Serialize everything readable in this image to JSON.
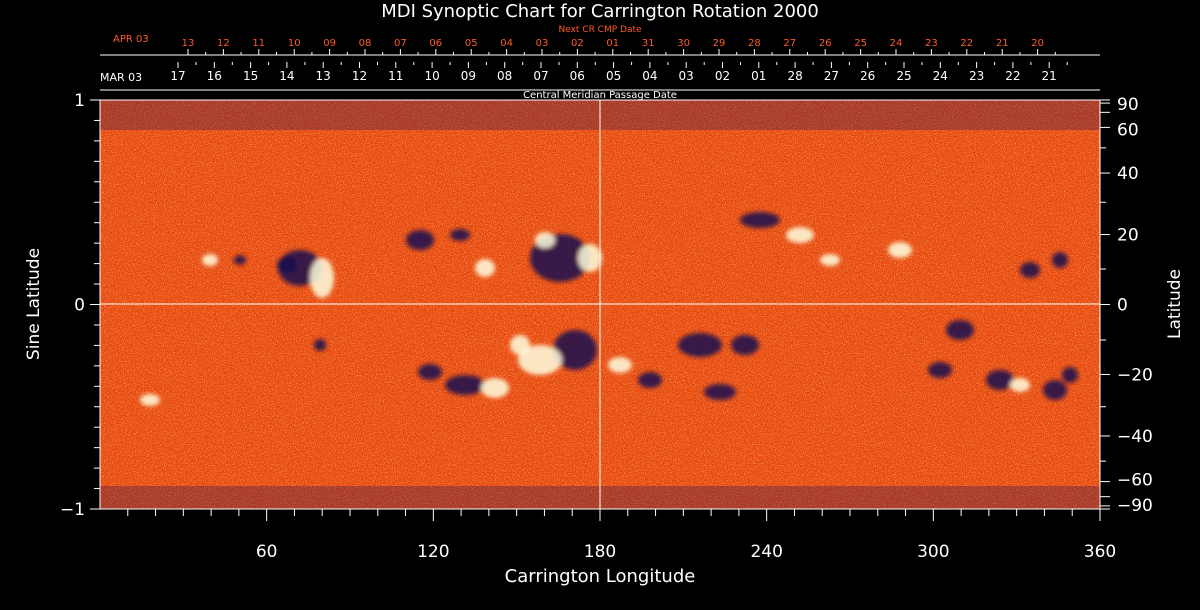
{
  "chart_data": {
    "type": "heatmap",
    "title": "MDI Synoptic Chart for Carrington Rotation 2000",
    "xlabel": "Carrington Longitude",
    "ylabel_left": "Sine Latitude",
    "ylabel_right": "Latitude",
    "xlim": [
      0,
      360
    ],
    "ylim": [
      -1,
      1
    ],
    "x_ticks": [
      60,
      120,
      180,
      240,
      300,
      360
    ],
    "y_ticks_left": [
      {
        "v": 1,
        "label": "1"
      },
      {
        "v": 0,
        "label": "0"
      },
      {
        "v": -1,
        "label": "−1"
      }
    ],
    "y_ticks_right": [
      "90",
      "60",
      "40",
      "20",
      "0",
      "−20",
      "−40",
      "−60",
      "−90"
    ],
    "grid_lines": {
      "longitude": 180,
      "sine_latitude": 0
    },
    "top_axis": {
      "label": "Central Meridian Passage Date",
      "start_label": "MAR 03",
      "dates": [
        "17",
        "16",
        "15",
        "14",
        "13",
        "12",
        "11",
        "10",
        "09",
        "08",
        "07",
        "06",
        "05",
        "04",
        "03",
        "02",
        "01",
        "28",
        "27",
        "26",
        "25",
        "24",
        "23",
        "22",
        "21"
      ]
    },
    "next_axis": {
      "label": "Next CR CMP Date",
      "start_label": "APR 03",
      "dates": [
        "13",
        "12",
        "11",
        "10",
        "09",
        "08",
        "07",
        "06",
        "05",
        "04",
        "03",
        "02",
        "01",
        "31",
        "30",
        "29",
        "28",
        "27",
        "26",
        "25",
        "24",
        "23",
        "22",
        "21",
        "20"
      ]
    },
    "colors": {
      "background": "#000000",
      "field_base": "#ff5a10",
      "positive": "#ffffe0",
      "negative": "#140a50",
      "axis": "#ffffff",
      "next_axis": "#ff5a28"
    }
  }
}
